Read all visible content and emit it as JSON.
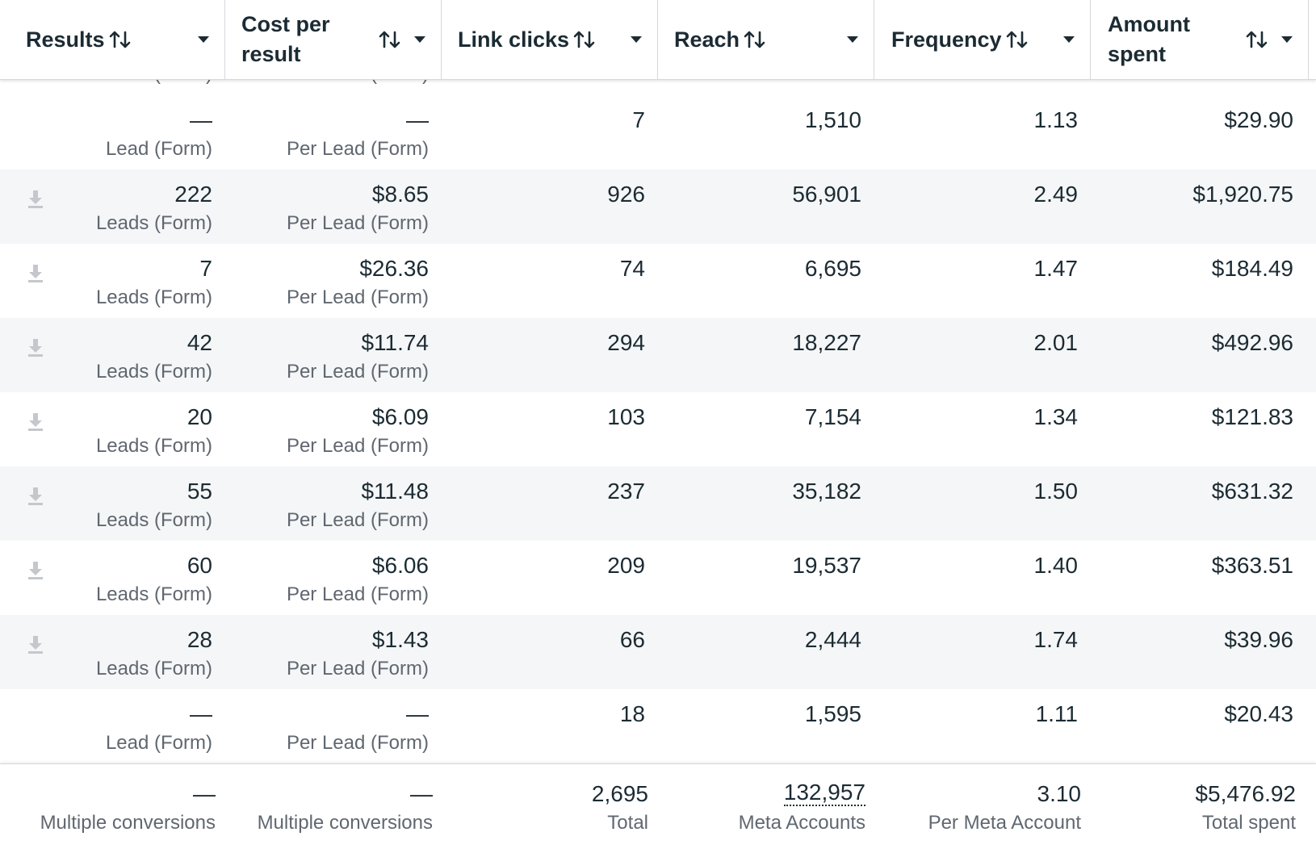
{
  "columns": [
    {
      "key": "results",
      "label": "Results"
    },
    {
      "key": "cost_per_result",
      "label": "Cost per\nresult"
    },
    {
      "key": "link_clicks",
      "label": "Link clicks"
    },
    {
      "key": "reach",
      "label": "Reach"
    },
    {
      "key": "frequency",
      "label": "Frequency"
    },
    {
      "key": "amount_spent",
      "label": "Amount\nspent"
    }
  ],
  "partial_row": {
    "results_sub": "Lead (Form)",
    "cost_sub": "Per Lead (Form)"
  },
  "rows": [
    {
      "download": false,
      "results": "—",
      "results_sub": "Lead (Form)",
      "cost": "—",
      "cost_sub": "Per Lead (Form)",
      "link_clicks": "7",
      "reach": "1,510",
      "frequency": "1.13",
      "amount_spent": "$29.90"
    },
    {
      "download": true,
      "results": "222",
      "results_sub": "Leads (Form)",
      "cost": "$8.65",
      "cost_sub": "Per Lead (Form)",
      "link_clicks": "926",
      "reach": "56,901",
      "frequency": "2.49",
      "amount_spent": "$1,920.75"
    },
    {
      "download": true,
      "results": "7",
      "results_sub": "Leads (Form)",
      "cost": "$26.36",
      "cost_sub": "Per Lead (Form)",
      "link_clicks": "74",
      "reach": "6,695",
      "frequency": "1.47",
      "amount_spent": "$184.49"
    },
    {
      "download": true,
      "results": "42",
      "results_sub": "Leads (Form)",
      "cost": "$11.74",
      "cost_sub": "Per Lead (Form)",
      "link_clicks": "294",
      "reach": "18,227",
      "frequency": "2.01",
      "amount_spent": "$492.96"
    },
    {
      "download": true,
      "results": "20",
      "results_sub": "Leads (Form)",
      "cost": "$6.09",
      "cost_sub": "Per Lead (Form)",
      "link_clicks": "103",
      "reach": "7,154",
      "frequency": "1.34",
      "amount_spent": "$121.83"
    },
    {
      "download": true,
      "results": "55",
      "results_sub": "Leads (Form)",
      "cost": "$11.48",
      "cost_sub": "Per Lead (Form)",
      "link_clicks": "237",
      "reach": "35,182",
      "frequency": "1.50",
      "amount_spent": "$631.32"
    },
    {
      "download": true,
      "results": "60",
      "results_sub": "Leads (Form)",
      "cost": "$6.06",
      "cost_sub": "Per Lead (Form)",
      "link_clicks": "209",
      "reach": "19,537",
      "frequency": "1.40",
      "amount_spent": "$363.51"
    },
    {
      "download": true,
      "results": "28",
      "results_sub": "Leads (Form)",
      "cost": "$1.43",
      "cost_sub": "Per Lead (Form)",
      "link_clicks": "66",
      "reach": "2,444",
      "frequency": "1.74",
      "amount_spent": "$39.96"
    },
    {
      "download": false,
      "results": "—",
      "results_sub": "Lead (Form)",
      "cost": "—",
      "cost_sub": "Per Lead (Form)",
      "link_clicks": "18",
      "reach": "1,595",
      "frequency": "1.11",
      "amount_spent": "$20.43"
    }
  ],
  "totals": {
    "results": "—",
    "results_sub": "Multiple conversions",
    "cost": "—",
    "cost_sub": "Multiple conversions",
    "link_clicks": "2,695",
    "link_clicks_sub": "Total",
    "reach": "132,957",
    "reach_sub": "Meta Accounts",
    "frequency": "3.10",
    "frequency_sub": "Per Meta Account",
    "amount_spent": "$5,476.92",
    "amount_spent_sub": "Total spent"
  },
  "icons": {
    "sort": "sort-arrows-icon",
    "dropdown": "caret-down-icon",
    "download": "download-icon"
  },
  "colors": {
    "text": "#1c2b33",
    "secondary": "#606770",
    "row_alt": "#f5f6f7",
    "border": "#d4d8dc"
  }
}
